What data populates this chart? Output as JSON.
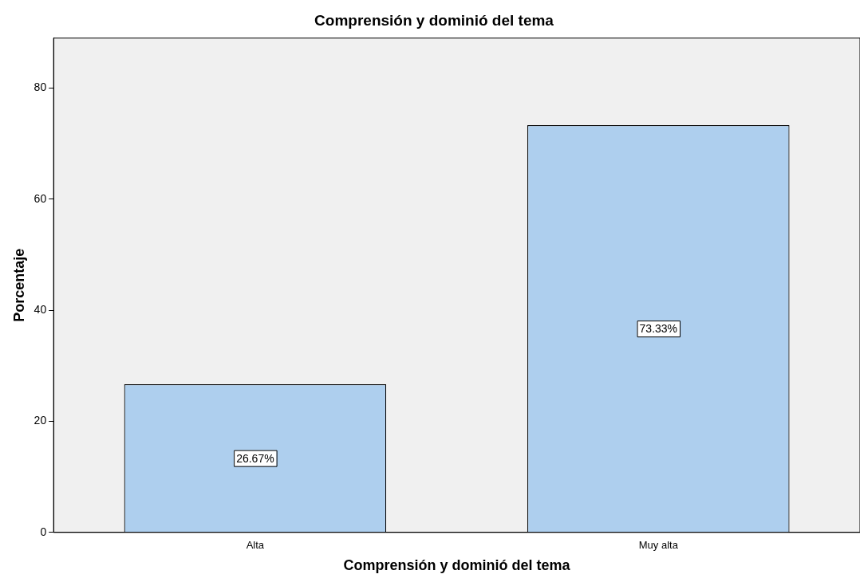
{
  "chart_data": {
    "type": "bar",
    "title": "Comprensión y dominió del tema",
    "xlabel": "Comprensión y dominió del tema",
    "ylabel": "Porcentaje",
    "categories": [
      "Alta",
      "Muy alta"
    ],
    "values": [
      26.67,
      73.33
    ],
    "color": "#aecfee",
    "value_labels": [
      "26.67%",
      "73.33%"
    ],
    "ylim": [
      0,
      89
    ],
    "yticks": [
      0,
      20,
      40,
      60,
      80
    ],
    "grid": false,
    "legend": false
  }
}
